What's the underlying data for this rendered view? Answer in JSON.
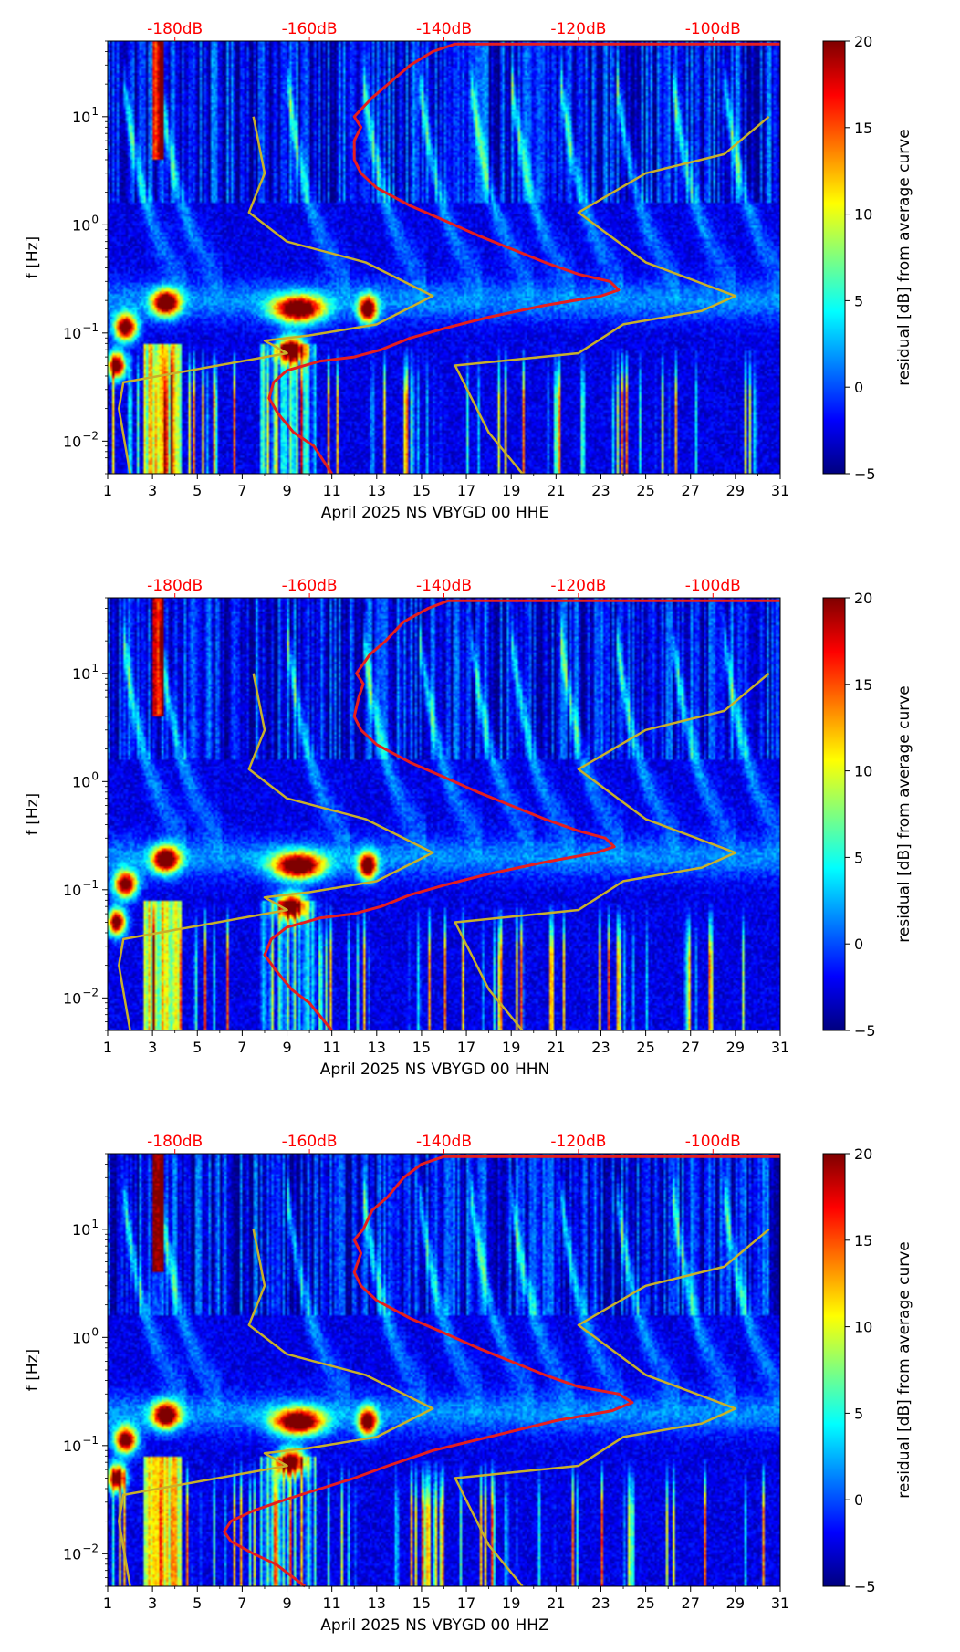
{
  "figure": {
    "colors": {
      "background": "#ffffff",
      "axis": "#000000",
      "dB_curve": "#e51e1e",
      "model_curve": "#c8b02a",
      "top_label": "#ff0000"
    },
    "colormap": [
      "#00007f",
      "#0000ff",
      "#007fff",
      "#00ffff",
      "#7fff7f",
      "#ffff00",
      "#ff7f00",
      "#ff0000",
      "#7f0000"
    ]
  },
  "chart_data": [
    {
      "type": "heatmap",
      "xlabel": "April 2025 NS VBYGD 00 HHE",
      "ylabel": "f [Hz]",
      "xlim": [
        1,
        31
      ],
      "ylim": [
        0.005,
        50
      ],
      "yscale": "log",
      "x_ticks": [
        "1",
        "3",
        "5",
        "7",
        "9",
        "11",
        "13",
        "15",
        "17",
        "19",
        "21",
        "23",
        "25",
        "27",
        "29",
        "31"
      ],
      "y_ticks": [
        {
          "value": 0.01,
          "base": "10",
          "exp": "−2"
        },
        {
          "value": 0.1,
          "base": "10",
          "exp": "−1"
        },
        {
          "value": 1,
          "base": "10",
          "exp": "0"
        },
        {
          "value": 10,
          "base": "10",
          "exp": "1"
        }
      ],
      "top_ticks": [
        "-180dB",
        "-160dB",
        "-140dB",
        "-120dB",
        "-100dB"
      ],
      "top_tick_days": [
        4.0,
        10.0,
        16.0,
        22.0,
        28.0
      ],
      "colorbar": {
        "label": "residual [dB] from average curve",
        "vmin": -5,
        "vmax": 20,
        "ticks": [
          "20",
          "15",
          "10",
          "5",
          "0",
          "−5"
        ],
        "tick_values": [
          20,
          15,
          10,
          5,
          0,
          -5
        ]
      },
      "series": [
        {
          "name": "dB curve",
          "color": "#e51e1e",
          "points": [
            [
              11.0,
              0.005
            ],
            [
              10.2,
              0.009
            ],
            [
              9.3,
              0.012
            ],
            [
              8.6,
              0.018
            ],
            [
              8.2,
              0.025
            ],
            [
              8.4,
              0.035
            ],
            [
              9.0,
              0.045
            ],
            [
              10.5,
              0.055
            ],
            [
              12.0,
              0.06
            ],
            [
              13.2,
              0.07
            ],
            [
              14.5,
              0.09
            ],
            [
              16.0,
              0.11
            ],
            [
              18.0,
              0.14
            ],
            [
              20.5,
              0.18
            ],
            [
              23.0,
              0.22
            ],
            [
              23.8,
              0.25
            ],
            [
              23.4,
              0.3
            ],
            [
              22.0,
              0.35
            ],
            [
              20.5,
              0.45
            ],
            [
              19.0,
              0.6
            ],
            [
              17.5,
              0.8
            ],
            [
              16.0,
              1.1
            ],
            [
              14.5,
              1.5
            ],
            [
              13.0,
              2.2
            ],
            [
              12.3,
              3
            ],
            [
              12.0,
              4
            ],
            [
              12.0,
              6
            ],
            [
              12.3,
              8
            ],
            [
              12.0,
              10
            ],
            [
              12.8,
              15
            ],
            [
              13.5,
              20
            ],
            [
              14.5,
              30
            ],
            [
              15.5,
              40
            ],
            [
              16.5,
              47
            ],
            [
              31.0,
              47
            ]
          ]
        },
        {
          "name": "model curve",
          "color": "#c8b02a",
          "points": [
            [
              19.5,
              0.005
            ],
            [
              18.0,
              0.012
            ],
            [
              16.5,
              0.05
            ],
            [
              22.0,
              0.065
            ],
            [
              24.0,
              0.12
            ],
            [
              27.5,
              0.16
            ],
            [
              29.0,
              0.22
            ],
            [
              25.0,
              0.45
            ],
            [
              22.0,
              1.3
            ],
            [
              25.0,
              3
            ],
            [
              28.5,
              4.5
            ],
            [
              30.5,
              10
            ]
          ]
        },
        {
          "name": "model curve",
          "color": "#c8b02a",
          "points": [
            [
              2.0,
              0.005
            ],
            [
              1.5,
              0.02
            ],
            [
              1.7,
              0.035
            ],
            [
              9.0,
              0.065
            ],
            [
              8.0,
              0.085
            ],
            [
              10.0,
              0.095
            ],
            [
              13.0,
              0.12
            ],
            [
              15.5,
              0.22
            ],
            [
              12.5,
              0.45
            ],
            [
              9.0,
              0.7
            ],
            [
              7.3,
              1.3
            ],
            [
              8.0,
              3
            ],
            [
              7.5,
              10
            ]
          ]
        }
      ]
    },
    {
      "type": "heatmap",
      "xlabel": "April 2025 NS VBYGD 00 HHN",
      "ylabel": "f [Hz]",
      "xlim": [
        1,
        31
      ],
      "ylim": [
        0.005,
        50
      ],
      "yscale": "log",
      "x_ticks": [
        "1",
        "3",
        "5",
        "7",
        "9",
        "11",
        "13",
        "15",
        "17",
        "19",
        "21",
        "23",
        "25",
        "27",
        "29",
        "31"
      ],
      "y_ticks": [
        {
          "value": 0.01,
          "base": "10",
          "exp": "−2"
        },
        {
          "value": 0.1,
          "base": "10",
          "exp": "−1"
        },
        {
          "value": 1,
          "base": "10",
          "exp": "0"
        },
        {
          "value": 10,
          "base": "10",
          "exp": "1"
        }
      ],
      "top_ticks": [
        "-180dB",
        "-160dB",
        "-140dB",
        "-120dB",
        "-100dB"
      ],
      "top_tick_days": [
        4.0,
        10.0,
        16.0,
        22.0,
        28.0
      ],
      "colorbar": {
        "label": "residual [dB] from average curve",
        "vmin": -5,
        "vmax": 20,
        "ticks": [
          "20",
          "15",
          "10",
          "5",
          "0",
          "−5"
        ],
        "tick_values": [
          20,
          15,
          10,
          5,
          0,
          -5
        ]
      },
      "series": [
        {
          "name": "dB curve",
          "color": "#e51e1e",
          "points": [
            [
              11.0,
              0.005
            ],
            [
              10.0,
              0.009
            ],
            [
              9.2,
              0.012
            ],
            [
              8.5,
              0.018
            ],
            [
              8.0,
              0.025
            ],
            [
              8.3,
              0.035
            ],
            [
              9.0,
              0.045
            ],
            [
              10.5,
              0.055
            ],
            [
              12.0,
              0.06
            ],
            [
              13.2,
              0.07
            ],
            [
              14.5,
              0.09
            ],
            [
              16.0,
              0.11
            ],
            [
              18.0,
              0.14
            ],
            [
              20.5,
              0.18
            ],
            [
              22.8,
              0.22
            ],
            [
              23.6,
              0.25
            ],
            [
              23.2,
              0.3
            ],
            [
              22.0,
              0.35
            ],
            [
              20.5,
              0.45
            ],
            [
              19.0,
              0.6
            ],
            [
              17.5,
              0.8
            ],
            [
              16.0,
              1.1
            ],
            [
              14.5,
              1.5
            ],
            [
              13.0,
              2.2
            ],
            [
              12.3,
              3
            ],
            [
              12.0,
              4
            ],
            [
              12.2,
              6
            ],
            [
              12.4,
              8
            ],
            [
              12.1,
              10
            ],
            [
              12.7,
              15
            ],
            [
              13.4,
              20
            ],
            [
              14.2,
              30
            ],
            [
              15.3,
              40
            ],
            [
              16.2,
              47
            ],
            [
              31.0,
              47
            ]
          ]
        },
        {
          "name": "model curve",
          "color": "#c8b02a",
          "points": [
            [
              19.5,
              0.005
            ],
            [
              18.0,
              0.012
            ],
            [
              16.5,
              0.05
            ],
            [
              22.0,
              0.065
            ],
            [
              24.0,
              0.12
            ],
            [
              27.5,
              0.16
            ],
            [
              29.0,
              0.22
            ],
            [
              25.0,
              0.45
            ],
            [
              22.0,
              1.3
            ],
            [
              25.0,
              3
            ],
            [
              28.5,
              4.5
            ],
            [
              30.5,
              10
            ]
          ]
        },
        {
          "name": "model curve",
          "color": "#c8b02a",
          "points": [
            [
              2.0,
              0.005
            ],
            [
              1.5,
              0.02
            ],
            [
              1.7,
              0.035
            ],
            [
              9.0,
              0.065
            ],
            [
              8.0,
              0.085
            ],
            [
              10.0,
              0.095
            ],
            [
              13.0,
              0.12
            ],
            [
              15.5,
              0.22
            ],
            [
              12.5,
              0.45
            ],
            [
              9.0,
              0.7
            ],
            [
              7.3,
              1.3
            ],
            [
              8.0,
              3
            ],
            [
              7.5,
              10
            ]
          ]
        }
      ]
    },
    {
      "type": "heatmap",
      "xlabel": "April 2025 NS VBYGD 00 HHZ",
      "ylabel": "f [Hz]",
      "xlim": [
        1,
        31
      ],
      "ylim": [
        0.005,
        50
      ],
      "yscale": "log",
      "x_ticks": [
        "1",
        "3",
        "5",
        "7",
        "9",
        "11",
        "13",
        "15",
        "17",
        "19",
        "21",
        "23",
        "25",
        "27",
        "29",
        "31"
      ],
      "y_ticks": [
        {
          "value": 0.01,
          "base": "10",
          "exp": "−2"
        },
        {
          "value": 0.1,
          "base": "10",
          "exp": "−1"
        },
        {
          "value": 1,
          "base": "10",
          "exp": "0"
        },
        {
          "value": 10,
          "base": "10",
          "exp": "1"
        }
      ],
      "top_ticks": [
        "-180dB",
        "-160dB",
        "-140dB",
        "-120dB",
        "-100dB"
      ],
      "top_tick_days": [
        4.0,
        10.0,
        16.0,
        22.0,
        28.0
      ],
      "colorbar": {
        "label": "residual [dB] from average curve",
        "vmin": -5,
        "vmax": 20,
        "ticks": [
          "20",
          "15",
          "10",
          "5",
          "0",
          "−5"
        ],
        "tick_values": [
          20,
          15,
          10,
          5,
          0,
          -5
        ]
      },
      "series": [
        {
          "name": "dB curve",
          "color": "#e51e1e",
          "points": [
            [
              9.8,
              0.005
            ],
            [
              8.5,
              0.008
            ],
            [
              7.5,
              0.01
            ],
            [
              6.5,
              0.013
            ],
            [
              6.2,
              0.016
            ],
            [
              6.5,
              0.02
            ],
            [
              7.5,
              0.025
            ],
            [
              9.0,
              0.032
            ],
            [
              10.5,
              0.04
            ],
            [
              12.0,
              0.05
            ],
            [
              13.5,
              0.065
            ],
            [
              15.5,
              0.09
            ],
            [
              18.0,
              0.12
            ],
            [
              21.0,
              0.17
            ],
            [
              23.5,
              0.21
            ],
            [
              24.4,
              0.25
            ],
            [
              23.8,
              0.3
            ],
            [
              22.0,
              0.35
            ],
            [
              20.5,
              0.45
            ],
            [
              19.0,
              0.6
            ],
            [
              17.5,
              0.8
            ],
            [
              16.0,
              1.1
            ],
            [
              14.5,
              1.5
            ],
            [
              13.0,
              2.2
            ],
            [
              12.3,
              3
            ],
            [
              12.0,
              4
            ],
            [
              12.3,
              6
            ],
            [
              12.0,
              8
            ],
            [
              12.4,
              10
            ],
            [
              12.8,
              15
            ],
            [
              13.5,
              20
            ],
            [
              14.2,
              30
            ],
            [
              15.0,
              40
            ],
            [
              16.0,
              47
            ],
            [
              31.0,
              47
            ]
          ]
        },
        {
          "name": "model curve",
          "color": "#c8b02a",
          "points": [
            [
              19.5,
              0.005
            ],
            [
              18.0,
              0.012
            ],
            [
              16.5,
              0.05
            ],
            [
              22.0,
              0.065
            ],
            [
              24.0,
              0.12
            ],
            [
              27.5,
              0.16
            ],
            [
              29.0,
              0.22
            ],
            [
              25.0,
              0.45
            ],
            [
              22.0,
              1.3
            ],
            [
              25.0,
              3
            ],
            [
              28.5,
              4.5
            ],
            [
              30.5,
              10
            ]
          ]
        },
        {
          "name": "model curve",
          "color": "#c8b02a",
          "points": [
            [
              2.0,
              0.005
            ],
            [
              1.5,
              0.02
            ],
            [
              1.7,
              0.035
            ],
            [
              9.0,
              0.065
            ],
            [
              8.0,
              0.085
            ],
            [
              10.0,
              0.095
            ],
            [
              13.0,
              0.12
            ],
            [
              15.5,
              0.22
            ],
            [
              12.5,
              0.45
            ],
            [
              9.0,
              0.7
            ],
            [
              7.3,
              1.3
            ],
            [
              8.0,
              3
            ],
            [
              7.5,
              10
            ]
          ]
        }
      ]
    }
  ]
}
